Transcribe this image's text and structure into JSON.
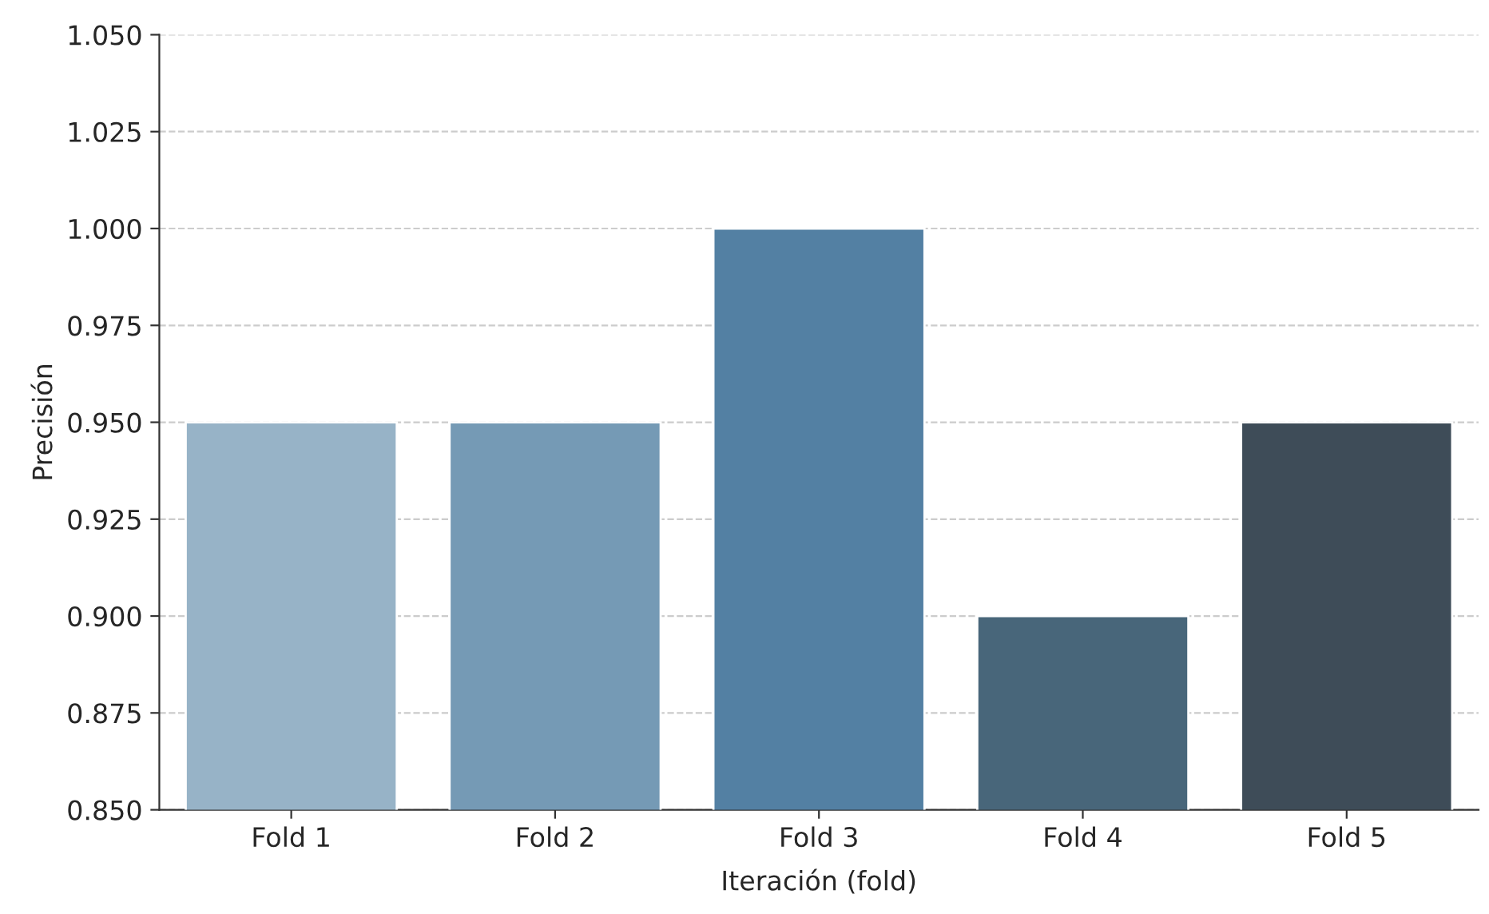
{
  "chart_data": {
    "type": "bar",
    "xlabel": "Iteración (fold)",
    "ylabel": "Precisión",
    "categories": [
      "Fold 1",
      "Fold 2",
      "Fold 3",
      "Fold 4",
      "Fold 5"
    ],
    "values": [
      0.95,
      0.95,
      1.0,
      0.9,
      0.95
    ],
    "colors": [
      "#8fb4cf",
      "#6a9cc0",
      "#4682b0",
      "#406882",
      "#3a4c5c"
    ],
    "ylim": [
      0.85,
      1.05
    ],
    "yticks": [
      {
        "value": 0.85,
        "label": "0.850"
      },
      {
        "value": 0.875,
        "label": "0.875"
      },
      {
        "value": 0.9,
        "label": "0.900"
      },
      {
        "value": 0.925,
        "label": "0.925"
      },
      {
        "value": 0.95,
        "label": "0.950"
      },
      {
        "value": 0.975,
        "label": "0.975"
      },
      {
        "value": 1.0,
        "label": "1.000"
      },
      {
        "value": 1.025,
        "label": "1.025"
      },
      {
        "value": 1.05,
        "label": "1.050"
      }
    ],
    "grid": "y"
  }
}
